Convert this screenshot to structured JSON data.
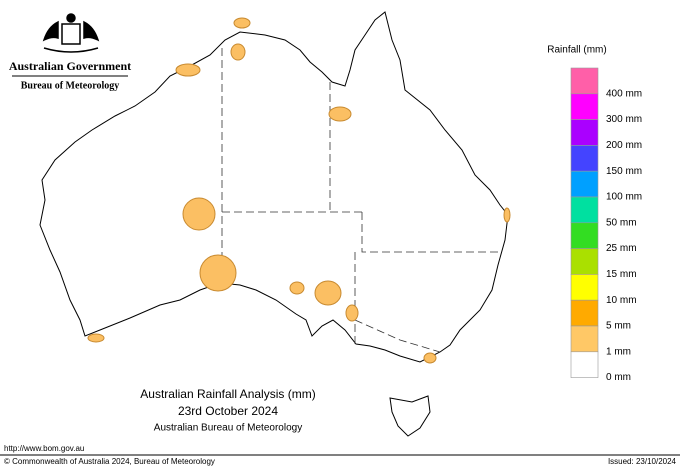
{
  "header": {
    "government": "Australian Government",
    "agency": "Bureau of Meteorology"
  },
  "legend": {
    "title": "Rainfall (mm)",
    "items": [
      {
        "label": "400 mm",
        "color": "#ff5fa8"
      },
      {
        "label": "300 mm",
        "color": "#ff00ff"
      },
      {
        "label": "200 mm",
        "color": "#aa00ff"
      },
      {
        "label": "150 mm",
        "color": "#4444ff"
      },
      {
        "label": "100 mm",
        "color": "#00a0ff"
      },
      {
        "label": "50 mm",
        "color": "#00e0a0"
      },
      {
        "label": "25 mm",
        "color": "#33dd22"
      },
      {
        "label": "15 mm",
        "color": "#aae000"
      },
      {
        "label": "10 mm",
        "color": "#ffff00"
      },
      {
        "label": "5 mm",
        "color": "#ffaa00"
      },
      {
        "label": "1 mm",
        "color": "#ffc866"
      },
      {
        "label": "0 mm",
        "color": "#ffffff"
      }
    ]
  },
  "caption": {
    "title": "Australian Rainfall Analysis (mm)",
    "date": "23rd October 2024",
    "source": "Australian Bureau of Meteorology"
  },
  "footer": {
    "url": "http://www.bom.gov.au",
    "copyright": "© Commonwealth of Australia 2024, Bureau of Meteorology",
    "issued": "Issued: 23/10/2024"
  }
}
